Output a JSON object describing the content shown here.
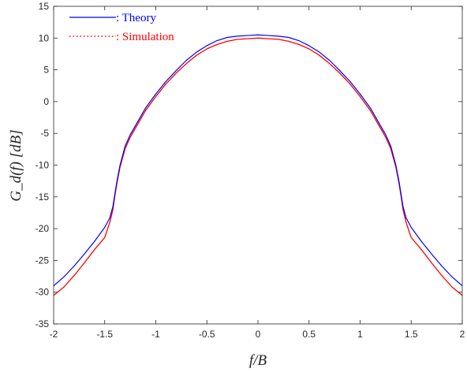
{
  "chart_data": {
    "type": "line",
    "title": "",
    "xlabel": "f/B",
    "ylabel": "G_d(f) [dB]",
    "xlim": [
      -2,
      2
    ],
    "ylim": [
      -35,
      15
    ],
    "xticks": [
      -2,
      -1.5,
      -1,
      -0.5,
      0,
      0.5,
      1,
      1.5,
      2
    ],
    "yticks": [
      -35,
      -30,
      -25,
      -20,
      -15,
      -10,
      -5,
      0,
      5,
      10,
      15
    ],
    "xtick_labels": [
      "-2",
      "-1.5",
      "-1",
      "-0.5",
      "0",
      "0.5",
      "1",
      "1.5",
      "2"
    ],
    "ytick_labels": [
      "-35",
      "-30",
      "-25",
      "-20",
      "-15",
      "-10",
      "-5",
      "0",
      "5",
      "10",
      "15"
    ],
    "grid": false,
    "legend_position": "top-left",
    "series": [
      {
        "name": ": Theory",
        "color": "#0000ff",
        "style": "solid",
        "x": [
          -2.0,
          -1.9,
          -1.8,
          -1.7,
          -1.6,
          -1.5,
          -1.45,
          -1.42,
          -1.4,
          -1.38,
          -1.35,
          -1.3,
          -1.25,
          -1.2,
          -1.1,
          -1.0,
          -0.9,
          -0.8,
          -0.7,
          -0.6,
          -0.5,
          -0.4,
          -0.3,
          -0.2,
          -0.1,
          0.0,
          0.1,
          0.2,
          0.3,
          0.4,
          0.5,
          0.6,
          0.7,
          0.8,
          0.9,
          1.0,
          1.1,
          1.2,
          1.25,
          1.3,
          1.35,
          1.38,
          1.4,
          1.42,
          1.45,
          1.5,
          1.6,
          1.7,
          1.8,
          1.9,
          2.0
        ],
        "y": [
          -29.0,
          -27.6,
          -25.9,
          -24.0,
          -22.0,
          -19.8,
          -18.3,
          -16.5,
          -14.5,
          -12.5,
          -10.0,
          -7.0,
          -5.2,
          -3.8,
          -1.0,
          1.2,
          3.2,
          4.9,
          6.5,
          7.8,
          8.8,
          9.6,
          10.1,
          10.3,
          10.4,
          10.5,
          10.4,
          10.3,
          10.1,
          9.6,
          8.8,
          7.8,
          6.5,
          4.9,
          3.2,
          1.2,
          -1.0,
          -3.8,
          -5.2,
          -7.0,
          -10.0,
          -12.5,
          -14.5,
          -16.5,
          -18.3,
          -19.8,
          -22.0,
          -24.0,
          -25.9,
          -27.6,
          -29.0
        ]
      },
      {
        "name": ": Simulation",
        "color": "#ff0000",
        "style": "dotted",
        "x": [
          -2.0,
          -1.9,
          -1.8,
          -1.7,
          -1.6,
          -1.5,
          -1.45,
          -1.42,
          -1.4,
          -1.38,
          -1.35,
          -1.3,
          -1.25,
          -1.2,
          -1.1,
          -1.0,
          -0.9,
          -0.8,
          -0.7,
          -0.6,
          -0.5,
          -0.4,
          -0.3,
          -0.2,
          -0.1,
          0.0,
          0.1,
          0.2,
          0.3,
          0.4,
          0.5,
          0.6,
          0.7,
          0.8,
          0.9,
          1.0,
          1.1,
          1.2,
          1.25,
          1.3,
          1.35,
          1.38,
          1.4,
          1.42,
          1.45,
          1.5,
          1.6,
          1.7,
          1.8,
          1.9,
          2.0
        ],
        "y": [
          -30.5,
          -29.2,
          -27.4,
          -25.4,
          -23.3,
          -21.4,
          -19.0,
          -17.0,
          -14.8,
          -12.8,
          -10.3,
          -7.4,
          -5.6,
          -4.2,
          -1.4,
          0.8,
          2.8,
          4.5,
          6.0,
          7.3,
          8.3,
          9.0,
          9.5,
          9.8,
          9.9,
          10.0,
          9.9,
          9.8,
          9.5,
          9.0,
          8.3,
          7.3,
          6.0,
          4.5,
          2.8,
          0.8,
          -1.4,
          -4.2,
          -5.6,
          -7.4,
          -10.3,
          -12.8,
          -14.8,
          -17.0,
          -19.0,
          -21.4,
          -23.3,
          -25.4,
          -27.4,
          -29.2,
          -30.5
        ]
      }
    ]
  }
}
